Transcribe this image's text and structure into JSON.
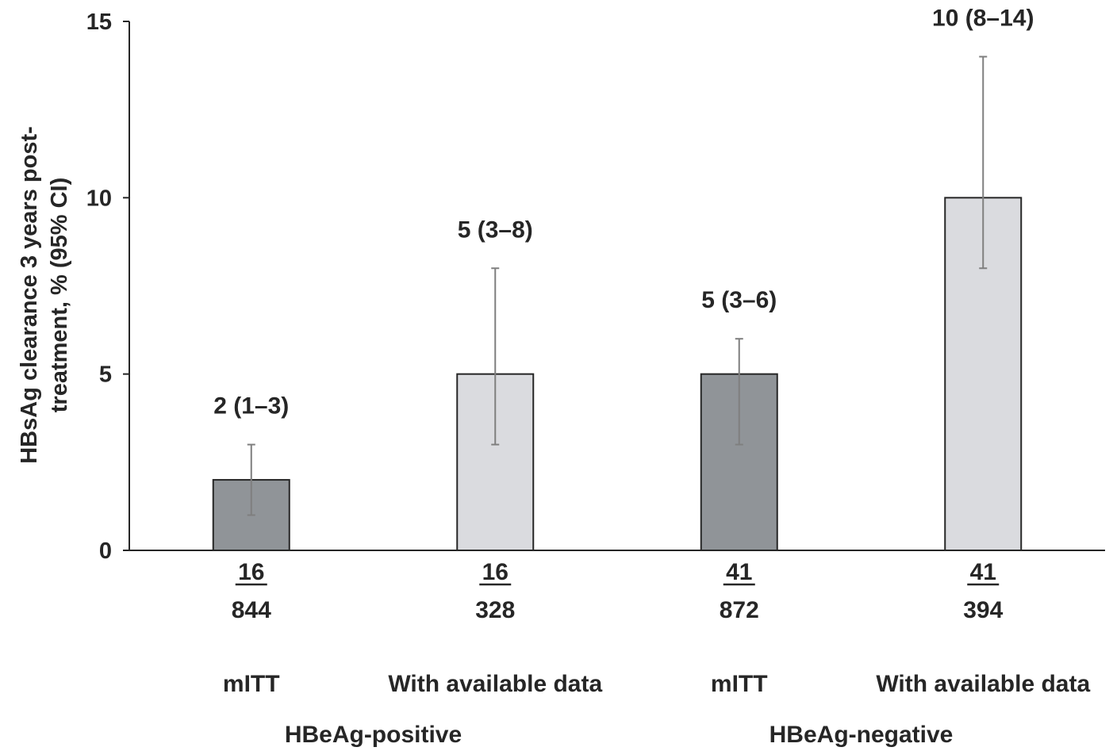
{
  "chart_data": {
    "type": "bar",
    "ylabel": [
      "HBsAg clearance 3 years post-",
      "treatment, % (95% CI)"
    ],
    "ylim": [
      0,
      15
    ],
    "yticks": [
      0,
      5,
      10,
      15
    ],
    "grid": false,
    "categories": [
      "mITT",
      "With available data",
      "mITT",
      "With available data"
    ],
    "groups": [
      {
        "label": "HBeAg-positive",
        "categories": [
          0,
          1
        ]
      },
      {
        "label": "HBeAg-negative",
        "categories": [
          2,
          3
        ]
      }
    ],
    "values": [
      2,
      5,
      5,
      10
    ],
    "ci_low": [
      1,
      3,
      3,
      8
    ],
    "ci_high": [
      3,
      8,
      6,
      14
    ],
    "data_labels": [
      "2 (1–3)",
      "5 (3–8)",
      "5 (3–6)",
      "10 (8–14)"
    ],
    "numerators": [
      "16",
      "16",
      "41",
      "41"
    ],
    "denominators": [
      "844",
      "328",
      "872",
      "394"
    ],
    "colors": [
      "#909498",
      "#dadbdf",
      "#909498",
      "#dadbdf"
    ],
    "error_color": "#7f7f7f"
  }
}
